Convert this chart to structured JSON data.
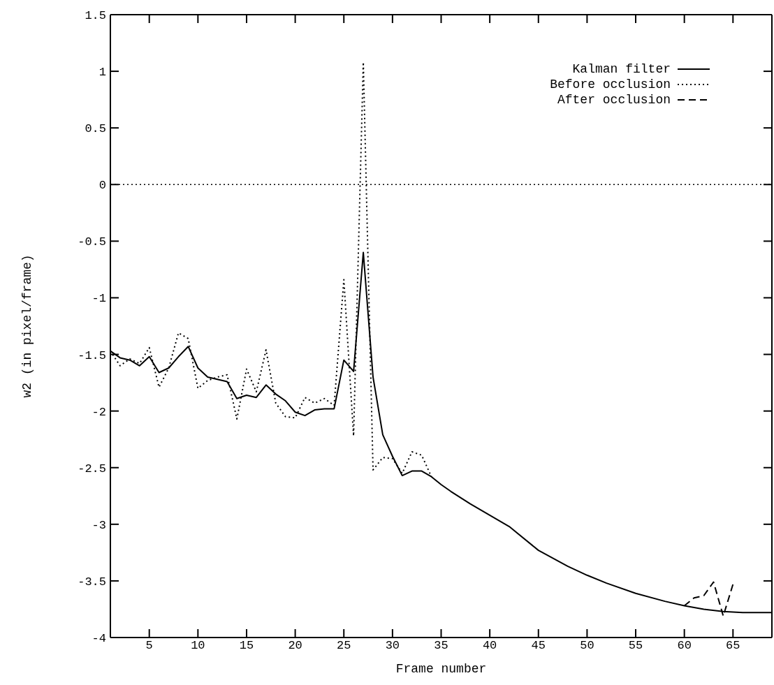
{
  "chart_data": {
    "type": "line",
    "xlabel": "Frame number",
    "ylabel": "w2 (in pixel/frame)",
    "xlim": [
      1,
      69
    ],
    "xticks": [
      5,
      10,
      15,
      20,
      25,
      30,
      35,
      40,
      45,
      50,
      55,
      60,
      65
    ],
    "ylim": [
      -4,
      1.5
    ],
    "yticks": [
      -4,
      -3.5,
      -3,
      -2.5,
      -2,
      -1.5,
      -1,
      -0.5,
      0,
      0.5,
      1,
      1.5
    ],
    "legend": "top right",
    "marker": "none",
    "ref_lines": [
      {
        "axis": "y",
        "value": 0,
        "color": "#000000",
        "line_style": "dotted"
      }
    ],
    "series": [
      {
        "name": "Kalman filter",
        "color": "#000000",
        "line_style": "solid",
        "x": [
          1,
          2,
          3,
          4,
          5,
          6,
          7,
          8,
          9,
          10,
          11,
          12,
          13,
          14,
          15,
          16,
          17,
          18,
          19,
          20,
          21,
          22,
          23,
          24,
          25,
          26,
          27,
          28,
          29,
          30,
          31,
          32,
          33,
          34,
          35,
          36,
          38,
          40,
          42,
          45,
          48,
          50,
          52,
          55,
          58,
          60,
          62,
          64,
          66,
          69
        ],
        "values": [
          -1.47,
          -1.53,
          -1.55,
          -1.6,
          -1.52,
          -1.66,
          -1.62,
          -1.52,
          -1.43,
          -1.62,
          -1.7,
          -1.72,
          -1.74,
          -1.89,
          -1.86,
          -1.88,
          -1.77,
          -1.85,
          -1.91,
          -2.01,
          -2.04,
          -1.99,
          -1.98,
          -1.98,
          -1.55,
          -1.65,
          -0.6,
          -1.7,
          -2.21,
          -2.4,
          -2.57,
          -2.53,
          -2.53,
          -2.58,
          -2.65,
          -2.71,
          -2.82,
          -2.92,
          -3.02,
          -3.23,
          -3.37,
          -3.45,
          -3.52,
          -3.61,
          -3.68,
          -3.72,
          -3.75,
          -3.77,
          -3.78,
          -3.78
        ]
      },
      {
        "name": "Before occlusion",
        "color": "#000000",
        "line_style": "dotted",
        "x": [
          1,
          2,
          3,
          4,
          5,
          6,
          7,
          8,
          9,
          10,
          11,
          12,
          13,
          14,
          15,
          16,
          17,
          18,
          19,
          20,
          21,
          22,
          23,
          24,
          25,
          26,
          27,
          28,
          29,
          30,
          31,
          32,
          33,
          34
        ],
        "values": [
          -1.47,
          -1.6,
          -1.54,
          -1.58,
          -1.44,
          -1.79,
          -1.62,
          -1.31,
          -1.36,
          -1.8,
          -1.73,
          -1.7,
          -1.68,
          -2.07,
          -1.63,
          -1.83,
          -1.46,
          -1.93,
          -2.05,
          -2.06,
          -1.88,
          -1.93,
          -1.89,
          -1.95,
          -0.84,
          -2.22,
          1.08,
          -2.52,
          -2.41,
          -2.42,
          -2.55,
          -2.36,
          -2.39,
          -2.58
        ]
      },
      {
        "name": "After occlusion",
        "color": "#000000",
        "line_style": "dashed",
        "x": [
          60,
          61,
          62,
          63,
          64,
          65
        ],
        "values": [
          -3.72,
          -3.65,
          -3.63,
          -3.51,
          -3.81,
          -3.53
        ]
      }
    ]
  }
}
